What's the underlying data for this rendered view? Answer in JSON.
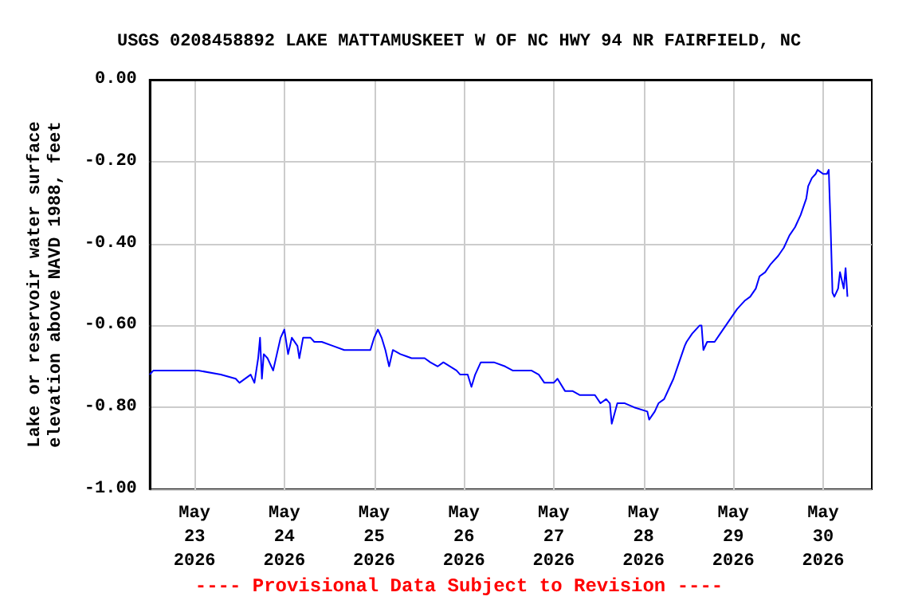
{
  "chart_data": {
    "type": "line",
    "title": "USGS 0208458892 LAKE MATTAMUSKEET W OF NC HWY 94 NR FAIRFIELD, NC",
    "ylabel": "Lake or reservoir water surface\nelevation above NAVD 1988, feet",
    "annotations": [
      "---- Provisional Data Subject to Revision ----"
    ],
    "grid": true,
    "marker": "none",
    "line_style": "solid",
    "xlim": [
      "2026-05-22T12:00",
      "2026-05-30T13:00"
    ],
    "xticks": [
      {
        "value": "2026-05-23",
        "label": "May\n23\n2026"
      },
      {
        "value": "2026-05-24",
        "label": "May\n24\n2026"
      },
      {
        "value": "2026-05-25",
        "label": "May\n25\n2026"
      },
      {
        "value": "2026-05-26",
        "label": "May\n26\n2026"
      },
      {
        "value": "2026-05-27",
        "label": "May\n27\n2026"
      },
      {
        "value": "2026-05-28",
        "label": "May\n28\n2026"
      },
      {
        "value": "2026-05-29",
        "label": "May\n29\n2026"
      },
      {
        "value": "2026-05-30",
        "label": "May\n30\n2026"
      }
    ],
    "ylim": [
      -1,
      0
    ],
    "yticks": [
      {
        "value": -1,
        "label": "-1.00"
      },
      {
        "value": -0.8,
        "label": "-0.80"
      },
      {
        "value": -0.6,
        "label": "-0.60"
      },
      {
        "value": -0.4,
        "label": "-0.40"
      },
      {
        "value": -0.2,
        "label": "-0.20"
      },
      {
        "value": 0,
        "label": "0.00"
      }
    ],
    "series": [
      {
        "color": "#0000ff",
        "x": [
          "2026-05-22T12:00",
          "2026-05-22T13:00",
          "2026-05-22T21:00",
          "2026-05-23T01:00",
          "2026-05-23T07:00",
          "2026-05-23T11:00",
          "2026-05-23T12:00",
          "2026-05-23T15:00",
          "2026-05-23T16:00",
          "2026-05-23T17:00",
          "2026-05-23T17:30",
          "2026-05-23T18:00",
          "2026-05-23T18:30",
          "2026-05-23T19:30",
          "2026-05-23T21:00",
          "2026-05-23T22:00",
          "2026-05-23T23:00",
          "2026-05-24T00:00",
          "2026-05-24T01:00",
          "2026-05-24T02:00",
          "2026-05-24T03:30",
          "2026-05-24T04:00",
          "2026-05-24T05:00",
          "2026-05-24T07:00",
          "2026-05-24T08:00",
          "2026-05-24T10:00",
          "2026-05-24T13:00",
          "2026-05-24T16:00",
          "2026-05-24T20:00",
          "2026-05-24T23:00",
          "2026-05-25T00:00",
          "2026-05-25T01:00",
          "2026-05-25T02:00",
          "2026-05-25T03:00",
          "2026-05-25T04:00",
          "2026-05-25T05:00",
          "2026-05-25T07:00",
          "2026-05-25T10:00",
          "2026-05-25T13:30",
          "2026-05-25T15:00",
          "2026-05-25T17:00",
          "2026-05-25T18:30",
          "2026-05-25T22:00",
          "2026-05-25T23:00",
          "2026-05-26T01:00",
          "2026-05-26T02:00",
          "2026-05-26T03:00",
          "2026-05-26T04:30",
          "2026-05-26T08:00",
          "2026-05-26T11:00",
          "2026-05-26T13:00",
          "2026-05-26T16:00",
          "2026-05-26T18:00",
          "2026-05-26T20:00",
          "2026-05-26T21:30",
          "2026-05-27T00:00",
          "2026-05-27T01:00",
          "2026-05-27T03:00",
          "2026-05-27T05:00",
          "2026-05-27T07:00",
          "2026-05-27T11:00",
          "2026-05-27T12:30",
          "2026-05-27T14:00",
          "2026-05-27T15:00",
          "2026-05-27T15:30",
          "2026-05-27T17:00",
          "2026-05-27T19:00",
          "2026-05-27T21:30",
          "2026-05-28T01:00",
          "2026-05-28T01:30",
          "2026-05-28T03:00",
          "2026-05-28T04:00",
          "2026-05-28T05:30",
          "2026-05-28T07:00",
          "2026-05-28T08:00",
          "2026-05-28T09:30",
          "2026-05-28T11:00",
          "2026-05-28T11:30",
          "2026-05-28T13:00",
          "2026-05-28T15:00",
          "2026-05-28T15:30",
          "2026-05-28T16:00",
          "2026-05-28T17:00",
          "2026-05-28T19:00",
          "2026-05-28T20:30",
          "2026-05-28T22:00",
          "2026-05-28T23:30",
          "2026-05-29T01:00",
          "2026-05-29T03:00",
          "2026-05-29T04:30",
          "2026-05-29T06:00",
          "2026-05-29T07:00",
          "2026-05-29T08:30",
          "2026-05-29T10:00",
          "2026-05-29T12:00",
          "2026-05-29T13:30",
          "2026-05-29T15:00",
          "2026-05-29T16:30",
          "2026-05-29T18:00",
          "2026-05-29T19:30",
          "2026-05-29T20:00",
          "2026-05-29T21:00",
          "2026-05-29T22:00",
          "2026-05-29T22:30",
          "2026-05-30T00:00",
          "2026-05-30T01:00",
          "2026-05-30T01:30",
          "2026-05-30T02:00",
          "2026-05-30T02:30",
          "2026-05-30T03:00",
          "2026-05-30T04:00",
          "2026-05-30T04:30",
          "2026-05-30T05:30",
          "2026-05-30T06:00",
          "2026-05-30T06:30"
        ],
        "values": [
          -0.72,
          -0.71,
          -0.71,
          -0.71,
          -0.72,
          -0.73,
          -0.74,
          -0.72,
          -0.74,
          -0.68,
          -0.63,
          -0.73,
          -0.67,
          -0.68,
          -0.71,
          -0.67,
          -0.63,
          -0.61,
          -0.67,
          -0.63,
          -0.65,
          -0.68,
          -0.63,
          -0.63,
          -0.64,
          -0.64,
          -0.65,
          -0.66,
          -0.66,
          -0.66,
          -0.63,
          -0.61,
          -0.63,
          -0.66,
          -0.7,
          -0.66,
          -0.67,
          -0.68,
          -0.68,
          -0.69,
          -0.7,
          -0.69,
          -0.71,
          -0.72,
          -0.72,
          -0.75,
          -0.72,
          -0.69,
          -0.69,
          -0.7,
          -0.71,
          -0.71,
          -0.71,
          -0.72,
          -0.74,
          -0.74,
          -0.73,
          -0.76,
          -0.76,
          -0.77,
          -0.77,
          -0.79,
          -0.78,
          -0.79,
          -0.84,
          -0.79,
          -0.79,
          -0.8,
          -0.81,
          -0.83,
          -0.81,
          -0.79,
          -0.78,
          -0.75,
          -0.73,
          -0.69,
          -0.65,
          -0.64,
          -0.62,
          -0.6,
          -0.6,
          -0.66,
          -0.64,
          -0.64,
          -0.62,
          -0.6,
          -0.58,
          -0.56,
          -0.54,
          -0.53,
          -0.51,
          -0.48,
          -0.47,
          -0.45,
          -0.43,
          -0.41,
          -0.38,
          -0.36,
          -0.33,
          -0.29,
          -0.26,
          -0.24,
          -0.23,
          -0.22,
          -0.23,
          -0.23,
          -0.22,
          -0.36,
          -0.52,
          -0.53,
          -0.51,
          -0.47,
          -0.51,
          -0.46,
          -0.53
        ]
      }
    ]
  }
}
